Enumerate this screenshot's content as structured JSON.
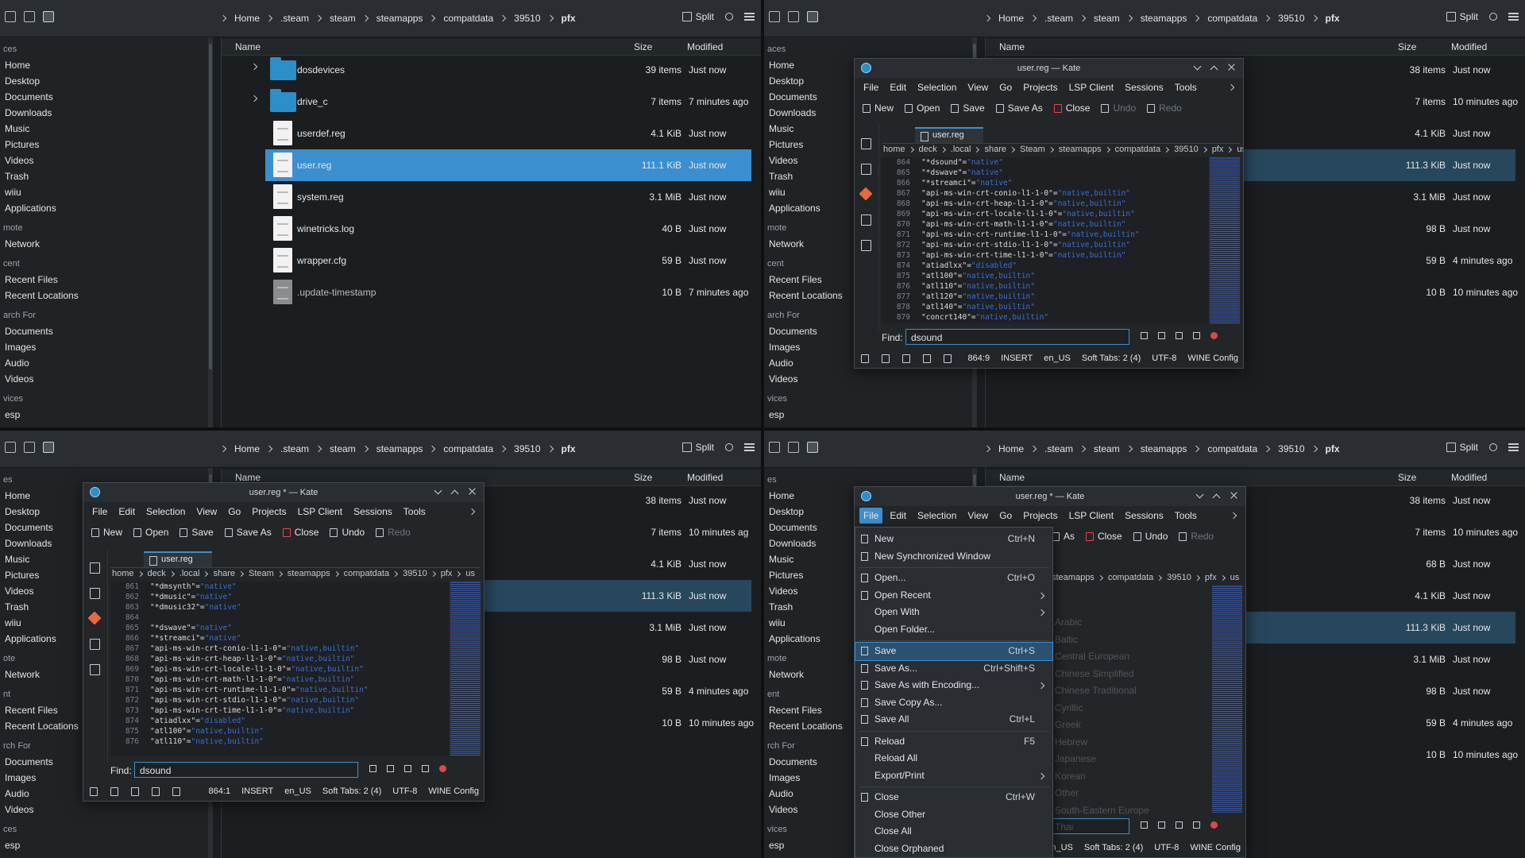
{
  "quadrants": [
    {
      "breadcrumb": [
        "Home",
        ".steam",
        "steam",
        "steamapps",
        "compatdata",
        "39510",
        "pfx"
      ],
      "split": "Split",
      "columns": {
        "name": "Name",
        "size": "Size",
        "modified": "Modified"
      },
      "sidebar": [
        {
          "heading": "ces",
          "items": [
            "Home",
            "Desktop",
            "Documents",
            "Downloads",
            "Music",
            "Pictures",
            "Videos",
            "Trash",
            "wiiu",
            "Applications"
          ]
        },
        {
          "heading": "mote",
          "items": [
            "Network"
          ]
        },
        {
          "heading": "cent",
          "items": [
            "Recent Files",
            "Recent Locations"
          ]
        },
        {
          "heading": "arch For",
          "items": [
            "Documents",
            "Images",
            "Audio",
            "Videos"
          ]
        },
        {
          "heading": "vices",
          "items": [
            "esp"
          ]
        }
      ],
      "files": [
        {
          "name": "dosdevices",
          "size": "39 items",
          "modified": "Just now"
        },
        {
          "name": "drive_c",
          "size": "7 items",
          "modified": "7 minutes ago"
        },
        {
          "name": "userdef.reg",
          "size": "4.1 KiB",
          "modified": "Just now"
        },
        {
          "name": "user.reg",
          "size": "111.1 KiB",
          "modified": "Just now",
          "selected": true
        },
        {
          "name": "system.reg",
          "size": "3.1 MiB",
          "modified": "Just now"
        },
        {
          "name": "winetricks.log",
          "size": "40 B",
          "modified": "Just now"
        },
        {
          "name": "wrapper.cfg",
          "size": "59 B",
          "modified": "Just now"
        },
        {
          "name": ".update-timestamp",
          "size": "10 B",
          "modified": "7 minutes ago"
        }
      ]
    },
    {
      "breadcrumb": [
        "Home",
        ".steam",
        "steam",
        "steamapps",
        "compatdata",
        "39510",
        "pfx"
      ],
      "split": "Split",
      "columns": {
        "name": "Name",
        "size": "Size",
        "modified": "Modified"
      },
      "sidebar": [
        {
          "heading": "aces",
          "items": [
            "Home",
            "Desktop",
            "Documents",
            "Downloads",
            "Music",
            "Pictures",
            "Videos",
            "Trash",
            "wiiu",
            "Applications"
          ]
        },
        {
          "heading": "mote",
          "items": [
            "Network"
          ]
        },
        {
          "heading": "cent",
          "items": [
            "Recent Files",
            "Recent Locations"
          ]
        },
        {
          "heading": "arch For",
          "items": [
            "Documents",
            "Images",
            "Audio",
            "Videos"
          ]
        },
        {
          "heading": "vices",
          "items": [
            "esp"
          ]
        }
      ],
      "files": [
        {
          "size": "38 items",
          "modified": "Just now"
        },
        {
          "size": "7 items",
          "modified": "10 minutes ago"
        },
        {
          "size": "4.1 KiB",
          "modified": "Just now"
        },
        {
          "size": "111.3 KiB",
          "modified": "Just now",
          "selected": true
        },
        {
          "size": "3.1 MiB",
          "modified": "Just now"
        },
        {
          "size": "98 B",
          "modified": "Just now"
        },
        {
          "size": "59 B",
          "modified": "4 minutes ago"
        },
        {
          "size": "10 B",
          "modified": "10 minutes ago"
        }
      ],
      "kate": {
        "title": "user.reg — Kate",
        "menu": [
          "File",
          "Edit",
          "Selection",
          "View",
          "Go",
          "Projects",
          "LSP Client",
          "Sessions",
          "Tools"
        ],
        "toolbar": [
          {
            "label": "New"
          },
          {
            "label": "Open"
          },
          {
            "label": "Save"
          },
          {
            "label": "Save As"
          },
          {
            "label": "Close"
          },
          {
            "label": "Undo",
            "disabled": true
          },
          {
            "label": "Redo",
            "disabled": true
          }
        ],
        "tab": "user.reg",
        "path": [
          "home",
          "deck",
          ".local",
          "share",
          "Steam",
          "steamapps",
          "compatdata",
          "39510",
          "pfx",
          "us"
        ],
        "lines": [
          {
            "n": 864,
            "key": "\"*dsound\"=",
            "value": "\"native\""
          },
          {
            "n": 865,
            "key": "\"*dswave\"=",
            "value": "\"native\""
          },
          {
            "n": 866,
            "key": "\"*streamci\"=",
            "value": "\"native\""
          },
          {
            "n": 867,
            "key": "\"api-ms-win-crt-conio-l1-1-0\"=",
            "value": "\"native,builtin\""
          },
          {
            "n": 868,
            "key": "\"api-ms-win-crt-heap-l1-1-0\"=",
            "value": "\"native,builtin\""
          },
          {
            "n": 869,
            "key": "\"api-ms-win-crt-locale-l1-1-0\"=",
            "value": "\"native,builtin\""
          },
          {
            "n": 870,
            "key": "\"api-ms-win-crt-math-l1-1-0\"=",
            "value": "\"native,builtin\""
          },
          {
            "n": 871,
            "key": "\"api-ms-win-crt-runtime-l1-1-0\"=",
            "value": "\"native,builtin\""
          },
          {
            "n": 872,
            "key": "\"api-ms-win-crt-stdio-l1-1-0\"=",
            "value": "\"native,builtin\""
          },
          {
            "n": 873,
            "key": "\"api-ms-win-crt-time-l1-1-0\"=",
            "value": "\"native,builtin\""
          },
          {
            "n": 874,
            "key": "\"atiadlxx\"=",
            "value": "\"disabled\""
          },
          {
            "n": 875,
            "key": "\"atl100\"=",
            "value": "\"native,builtin\""
          },
          {
            "n": 876,
            "key": "\"atl110\"=",
            "value": "\"native,builtin\""
          },
          {
            "n": 877,
            "key": "\"atl120\"=",
            "value": "\"native,builtin\""
          },
          {
            "n": 878,
            "key": "\"atl140\"=",
            "value": "\"native,builtin\""
          },
          {
            "n": 879,
            "key": "\"concrt140\"=",
            "value": "\"native,builtin\""
          }
        ],
        "find_label": "Find:",
        "find": "dsound",
        "status": [
          "864:9",
          "INSERT",
          "en_US",
          "Soft Tabs: 2 (4)",
          "UTF-8",
          "WINE Config"
        ]
      }
    },
    {
      "breadcrumb": [
        "Home",
        ".steam",
        "steam",
        "steamapps",
        "compatdata",
        "39510",
        "pfx"
      ],
      "split": "Split",
      "columns": {
        "name": "Name",
        "size": "Size",
        "modified": "Modified"
      },
      "sidebar": [
        {
          "heading": "es",
          "items": [
            "Home",
            "Desktop",
            "Documents",
            "Downloads",
            "Music",
            "Pictures",
            "Videos",
            "Trash",
            "wiiu",
            "Applications"
          ]
        },
        {
          "heading": "ote",
          "items": [
            "Network"
          ]
        },
        {
          "heading": "nt",
          "items": [
            "Recent Files",
            "Recent Locations"
          ]
        },
        {
          "heading": "rch For",
          "items": [
            "Documents",
            "Images",
            "Audio",
            "Videos"
          ]
        },
        {
          "heading": "ces",
          "items": [
            "esp"
          ]
        }
      ],
      "files": [
        {
          "size": "38 items",
          "modified": "Just now"
        },
        {
          "size": "7 items",
          "modified": "10 minutes ag"
        },
        {
          "size": "4.1 KiB",
          "modified": "Just now"
        },
        {
          "size": "111.3 KiB",
          "modified": "Just now",
          "selected": true
        },
        {
          "size": "3.1 MiB",
          "modified": "Just now"
        },
        {
          "size": "98 B",
          "modified": "Just now"
        },
        {
          "size": "59 B",
          "modified": "4 minutes ago"
        },
        {
          "size": "10 B",
          "modified": "10 minutes ago"
        }
      ],
      "kate": {
        "title": "user.reg * — Kate",
        "menu": [
          "File",
          "Edit",
          "Selection",
          "View",
          "Go",
          "Projects",
          "LSP Client",
          "Sessions",
          "Tools"
        ],
        "toolbar": [
          {
            "label": "New"
          },
          {
            "label": "Open"
          },
          {
            "label": "Save"
          },
          {
            "label": "Save As"
          },
          {
            "label": "Close"
          },
          {
            "label": "Undo"
          },
          {
            "label": "Redo",
            "disabled": true
          }
        ],
        "tab": "user.reg",
        "path": [
          "home",
          "deck",
          ".local",
          "share",
          "Steam",
          "steamapps",
          "compatdata",
          "39510",
          "pfx",
          "us"
        ],
        "lines": [
          {
            "n": 861,
            "key": "\"*dmsynth\"=",
            "value": "\"native\""
          },
          {
            "n": 862,
            "key": "\"*dmusic\"=",
            "value": "\"native\""
          },
          {
            "n": 863,
            "key": "\"*dmusic32\"=",
            "value": "\"native\""
          },
          {
            "n": 864
          },
          {
            "n": 865,
            "key": "\"*dswave\"=",
            "value": "\"native\""
          },
          {
            "n": 866,
            "key": "\"*streamci\"=",
            "value": "\"native\""
          },
          {
            "n": 867,
            "key": "\"api-ms-win-crt-conio-l1-1-0\"=",
            "value": "\"native,builtin\""
          },
          {
            "n": 868,
            "key": "\"api-ms-win-crt-heap-l1-1-0\"=",
            "value": "\"native,builtin\""
          },
          {
            "n": 869,
            "key": "\"api-ms-win-crt-locale-l1-1-0\"=",
            "value": "\"native,builtin\""
          },
          {
            "n": 870,
            "key": "\"api-ms-win-crt-math-l1-1-0\"=",
            "value": "\"native,builtin\""
          },
          {
            "n": 871,
            "key": "\"api-ms-win-crt-runtime-l1-1-0\"=",
            "value": "\"native,builtin\""
          },
          {
            "n": 872,
            "key": "\"api-ms-win-crt-stdio-l1-1-0\"=",
            "value": "\"native,builtin\""
          },
          {
            "n": 873,
            "key": "\"api-ms-win-crt-time-l1-1-0\"=",
            "value": "\"native,builtin\""
          },
          {
            "n": 874,
            "key": "\"atiadlxx\"=",
            "value": "\"disabled\""
          },
          {
            "n": 875,
            "key": "\"atl100\"=",
            "value": "\"native,builtin\""
          },
          {
            "n": 876,
            "key": "\"atl110\"=",
            "value": "\"native,builtin\""
          }
        ],
        "find_label": "Find:",
        "find": "dsound",
        "status": [
          "864:1",
          "INSERT",
          "en_US",
          "Soft Tabs: 2 (4)",
          "UTF-8",
          "WINE Config"
        ]
      }
    },
    {
      "breadcrumb": [
        "Home",
        ".steam",
        "steam",
        "steamapps",
        "compatdata",
        "39510",
        "pfx"
      ],
      "split": "Split",
      "columns": {
        "name": "Name",
        "size": "Size",
        "modified": "Modified"
      },
      "sidebar": [
        {
          "heading": "es",
          "items": [
            "Home",
            "Desktop",
            "Documents",
            "Downloads",
            "Music",
            "Pictures",
            "Videos",
            "Trash",
            "wiiu",
            "Applications"
          ]
        },
        {
          "heading": "mote",
          "items": [
            "Network"
          ]
        },
        {
          "heading": "ent",
          "items": [
            "Recent Files",
            "Recent Locations"
          ]
        },
        {
          "heading": "rch For",
          "items": [
            "Documents",
            "Images",
            "Audio",
            "Videos"
          ]
        },
        {
          "heading": "vices",
          "items": [
            "esp"
          ]
        }
      ],
      "files": [
        {
          "size": "38 items",
          "modified": "Just now"
        },
        {
          "size": "7 items",
          "modified": "10 minutes ago"
        },
        {
          "size": "68 B",
          "modified": "Just now"
        },
        {
          "size": "4.1 KiB",
          "modified": "Just now"
        },
        {
          "size": "111.3 KiB",
          "modified": "Just now",
          "selected": true
        },
        {
          "size": "3.1 MiB",
          "modified": "Just now"
        },
        {
          "size": "98 B",
          "modified": "Just now"
        },
        {
          "size": "59 B",
          "modified": "4 minutes ago"
        },
        {
          "size": "10 B",
          "modified": "10 minutes ago"
        }
      ],
      "kate": {
        "title": "user.reg * — Kate",
        "menu": [
          "File",
          "Edit",
          "Selection",
          "View",
          "Go",
          "Projects",
          "LSP Client",
          "Sessions",
          "Tools"
        ],
        "toolbar": [
          {
            "label": "As"
          },
          {
            "label": "Close"
          },
          {
            "label": "Undo"
          },
          {
            "label": "Redo",
            "disabled": true
          }
        ],
        "path": [
          "steamapps",
          "compatdata",
          "39510",
          "pfx",
          "us"
        ],
        "status": [
          "en_US",
          "Soft Tabs: 2 (4)",
          "UTF-8",
          "WINE Config"
        ],
        "file_menu": [
          [
            {
              "label": "New",
              "shortcut": "Ctrl+N",
              "icon": true
            },
            {
              "label": "New Synchronized Window",
              "icon": true
            }
          ],
          [
            {
              "label": "Open...",
              "shortcut": "Ctrl+O",
              "icon": true
            },
            {
              "label": "Open Recent",
              "icon": true,
              "submenu": true
            },
            {
              "label": "Open With",
              "submenu": true
            },
            {
              "label": "Open Folder..."
            }
          ],
          [
            {
              "label": "Save",
              "shortcut": "Ctrl+S",
              "icon": true,
              "highlighted": true
            },
            {
              "label": "Save As...",
              "shortcut": "Ctrl+Shift+S",
              "icon": true
            },
            {
              "label": "Save As with Encoding...",
              "icon": true,
              "submenu": true
            },
            {
              "label": "Save Copy As...",
              "icon": true
            },
            {
              "label": "Save All",
              "shortcut": "Ctrl+L",
              "icon": true
            }
          ],
          [
            {
              "label": "Reload",
              "shortcut": "F5",
              "icon": true
            },
            {
              "label": "Reload All"
            },
            {
              "label": "Export/Print",
              "submenu": true
            }
          ],
          [
            {
              "label": "Close",
              "shortcut": "Ctrl+W",
              "icon": true
            },
            {
              "label": "Close Other"
            },
            {
              "label": "Close All"
            },
            {
              "label": "Close Orphaned"
            }
          ]
        ],
        "encodings": [
          "Arabic",
          "Baltic",
          "Central European",
          "Chinese Simplified",
          "Chinese Traditional",
          "Cyrillic",
          "Greek",
          "Hebrew",
          "Japanese",
          "Korean",
          "Other",
          "South-Eastern Europe",
          "Thai"
        ]
      }
    }
  ]
}
